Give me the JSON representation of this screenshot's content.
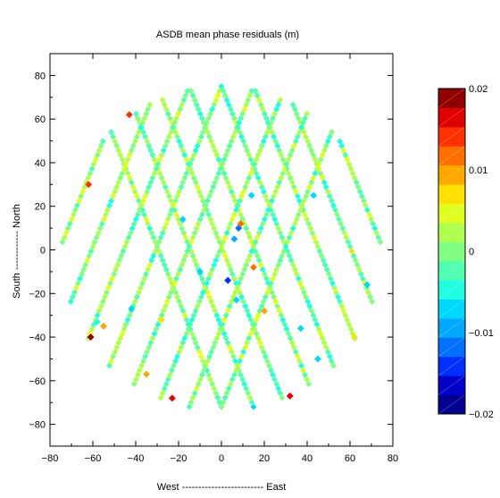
{
  "chart_data": {
    "type": "scatter",
    "title": "ASDB   mean phase residuals (m)",
    "xlabel": "West ------------------------- East",
    "ylabel": "South ------------ North",
    "xlim": [
      -80,
      80
    ],
    "ylim": [
      -90,
      90
    ],
    "x_ticks": [
      -80,
      -60,
      -40,
      -20,
      0,
      20,
      40,
      60,
      80
    ],
    "y_ticks": [
      -80,
      -60,
      -40,
      -20,
      0,
      20,
      40,
      60,
      80
    ],
    "x_tick_labels": [
      "−80",
      "−60",
      "−40",
      "−20",
      "0",
      "20",
      "40",
      "60",
      "80"
    ],
    "y_tick_labels": [
      "−80",
      "−60",
      "−40",
      "−20",
      "0",
      "20",
      "40",
      "60",
      "80"
    ],
    "domain_radius": 75,
    "pass_geometry": {
      "north_apex": [
        0,
        75
      ],
      "south_apex": [
        0,
        -72
      ],
      "pass_offsets_deg": [
        -60,
        -45,
        -30,
        -15,
        0,
        15,
        30,
        45,
        60
      ]
    },
    "colorbar": {
      "min": -0.02,
      "max": 0.02,
      "tick_values": [
        0.02,
        0.01,
        0,
        -0.01,
        -0.02
      ],
      "tick_labels": [
        "0.02",
        "0.01",
        "0",
        "−0.01",
        "−0.02"
      ],
      "colors": [
        "#000090",
        "#0000c8",
        "#0030ff",
        "#0070ff",
        "#00a8ff",
        "#00d8ff",
        "#20ffe0",
        "#50ffb0",
        "#80ff80",
        "#b0ff50",
        "#e0ff20",
        "#ffe000",
        "#ffa800",
        "#ff7000",
        "#ff3000",
        "#e00000",
        "#900000"
      ]
    },
    "outliers": [
      {
        "x": 8,
        "y": 10,
        "value": -0.011
      },
      {
        "x": 6,
        "y": 5,
        "value": -0.009
      },
      {
        "x": -10,
        "y": -10,
        "value": -0.008
      },
      {
        "x": 3,
        "y": -14,
        "value": -0.013
      },
      {
        "x": 43,
        "y": 25,
        "value": -0.007
      },
      {
        "x": -42,
        "y": -27,
        "value": -0.008
      },
      {
        "x": 37,
        "y": -36,
        "value": -0.006
      },
      {
        "x": 45,
        "y": -50,
        "value": -0.007
      },
      {
        "x": 7,
        "y": -23,
        "value": -0.006
      },
      {
        "x": -58,
        "y": -33,
        "value": -0.005
      },
      {
        "x": 14,
        "y": 25,
        "value": -0.006
      },
      {
        "x": 68,
        "y": -16,
        "value": -0.007
      },
      {
        "x": -18,
        "y": 14,
        "value": -0.007
      },
      {
        "x": -61,
        "y": -40,
        "value": 0.018
      },
      {
        "x": -23,
        "y": -68,
        "value": 0.017
      },
      {
        "x": 32,
        "y": -67,
        "value": 0.017
      },
      {
        "x": -43,
        "y": 62,
        "value": 0.013
      },
      {
        "x": -62,
        "y": 30,
        "value": 0.014
      },
      {
        "x": 9,
        "y": 12,
        "value": 0.012
      },
      {
        "x": 15,
        "y": -8,
        "value": 0.011
      },
      {
        "x": -35,
        "y": -57,
        "value": 0.01
      },
      {
        "x": -55,
        "y": -35,
        "value": 0.01
      },
      {
        "x": 20,
        "y": -28,
        "value": 0.009
      },
      {
        "x": 62,
        "y": -40,
        "value": 0.008
      },
      {
        "x": -28,
        "y": -32,
        "value": 0.007
      }
    ]
  }
}
